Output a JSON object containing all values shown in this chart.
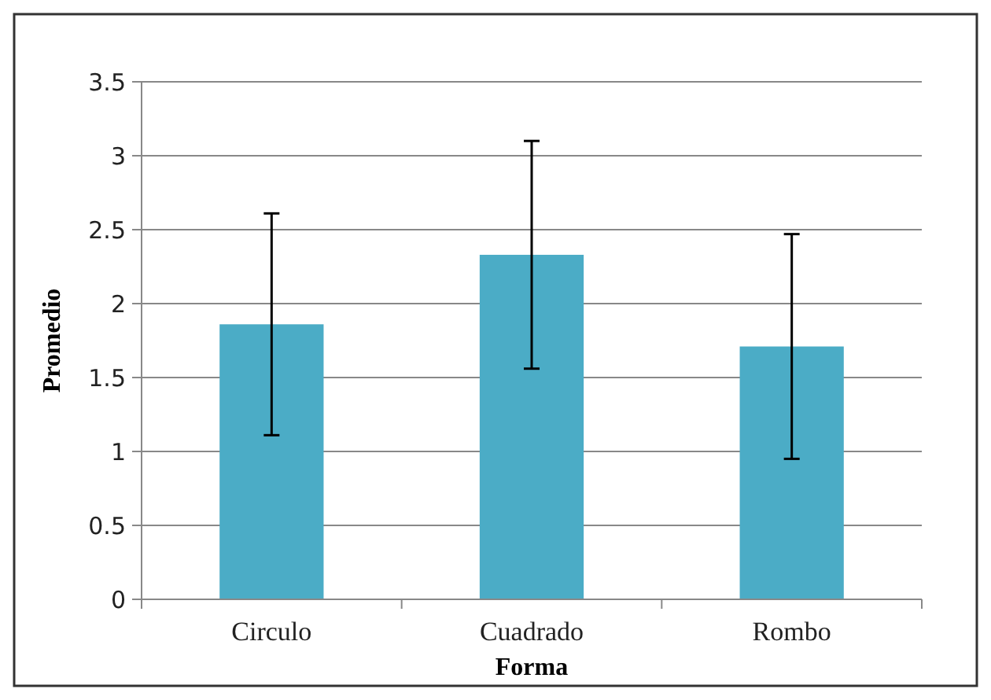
{
  "chart_data": {
    "type": "bar",
    "xlabel": "Forma",
    "ylabel": "Promedio",
    "categories": [
      "Circulo",
      "Cuadrado",
      "Rombo"
    ],
    "values": [
      1.86,
      2.33,
      1.71
    ],
    "errors": [
      0.75,
      0.77,
      0.76
    ],
    "color": "#4bacc6",
    "ylim": [
      0,
      3.5
    ],
    "yticks": [
      0,
      0.5,
      1,
      1.5,
      2,
      2.5,
      3,
      3.5
    ],
    "grid": "y"
  }
}
